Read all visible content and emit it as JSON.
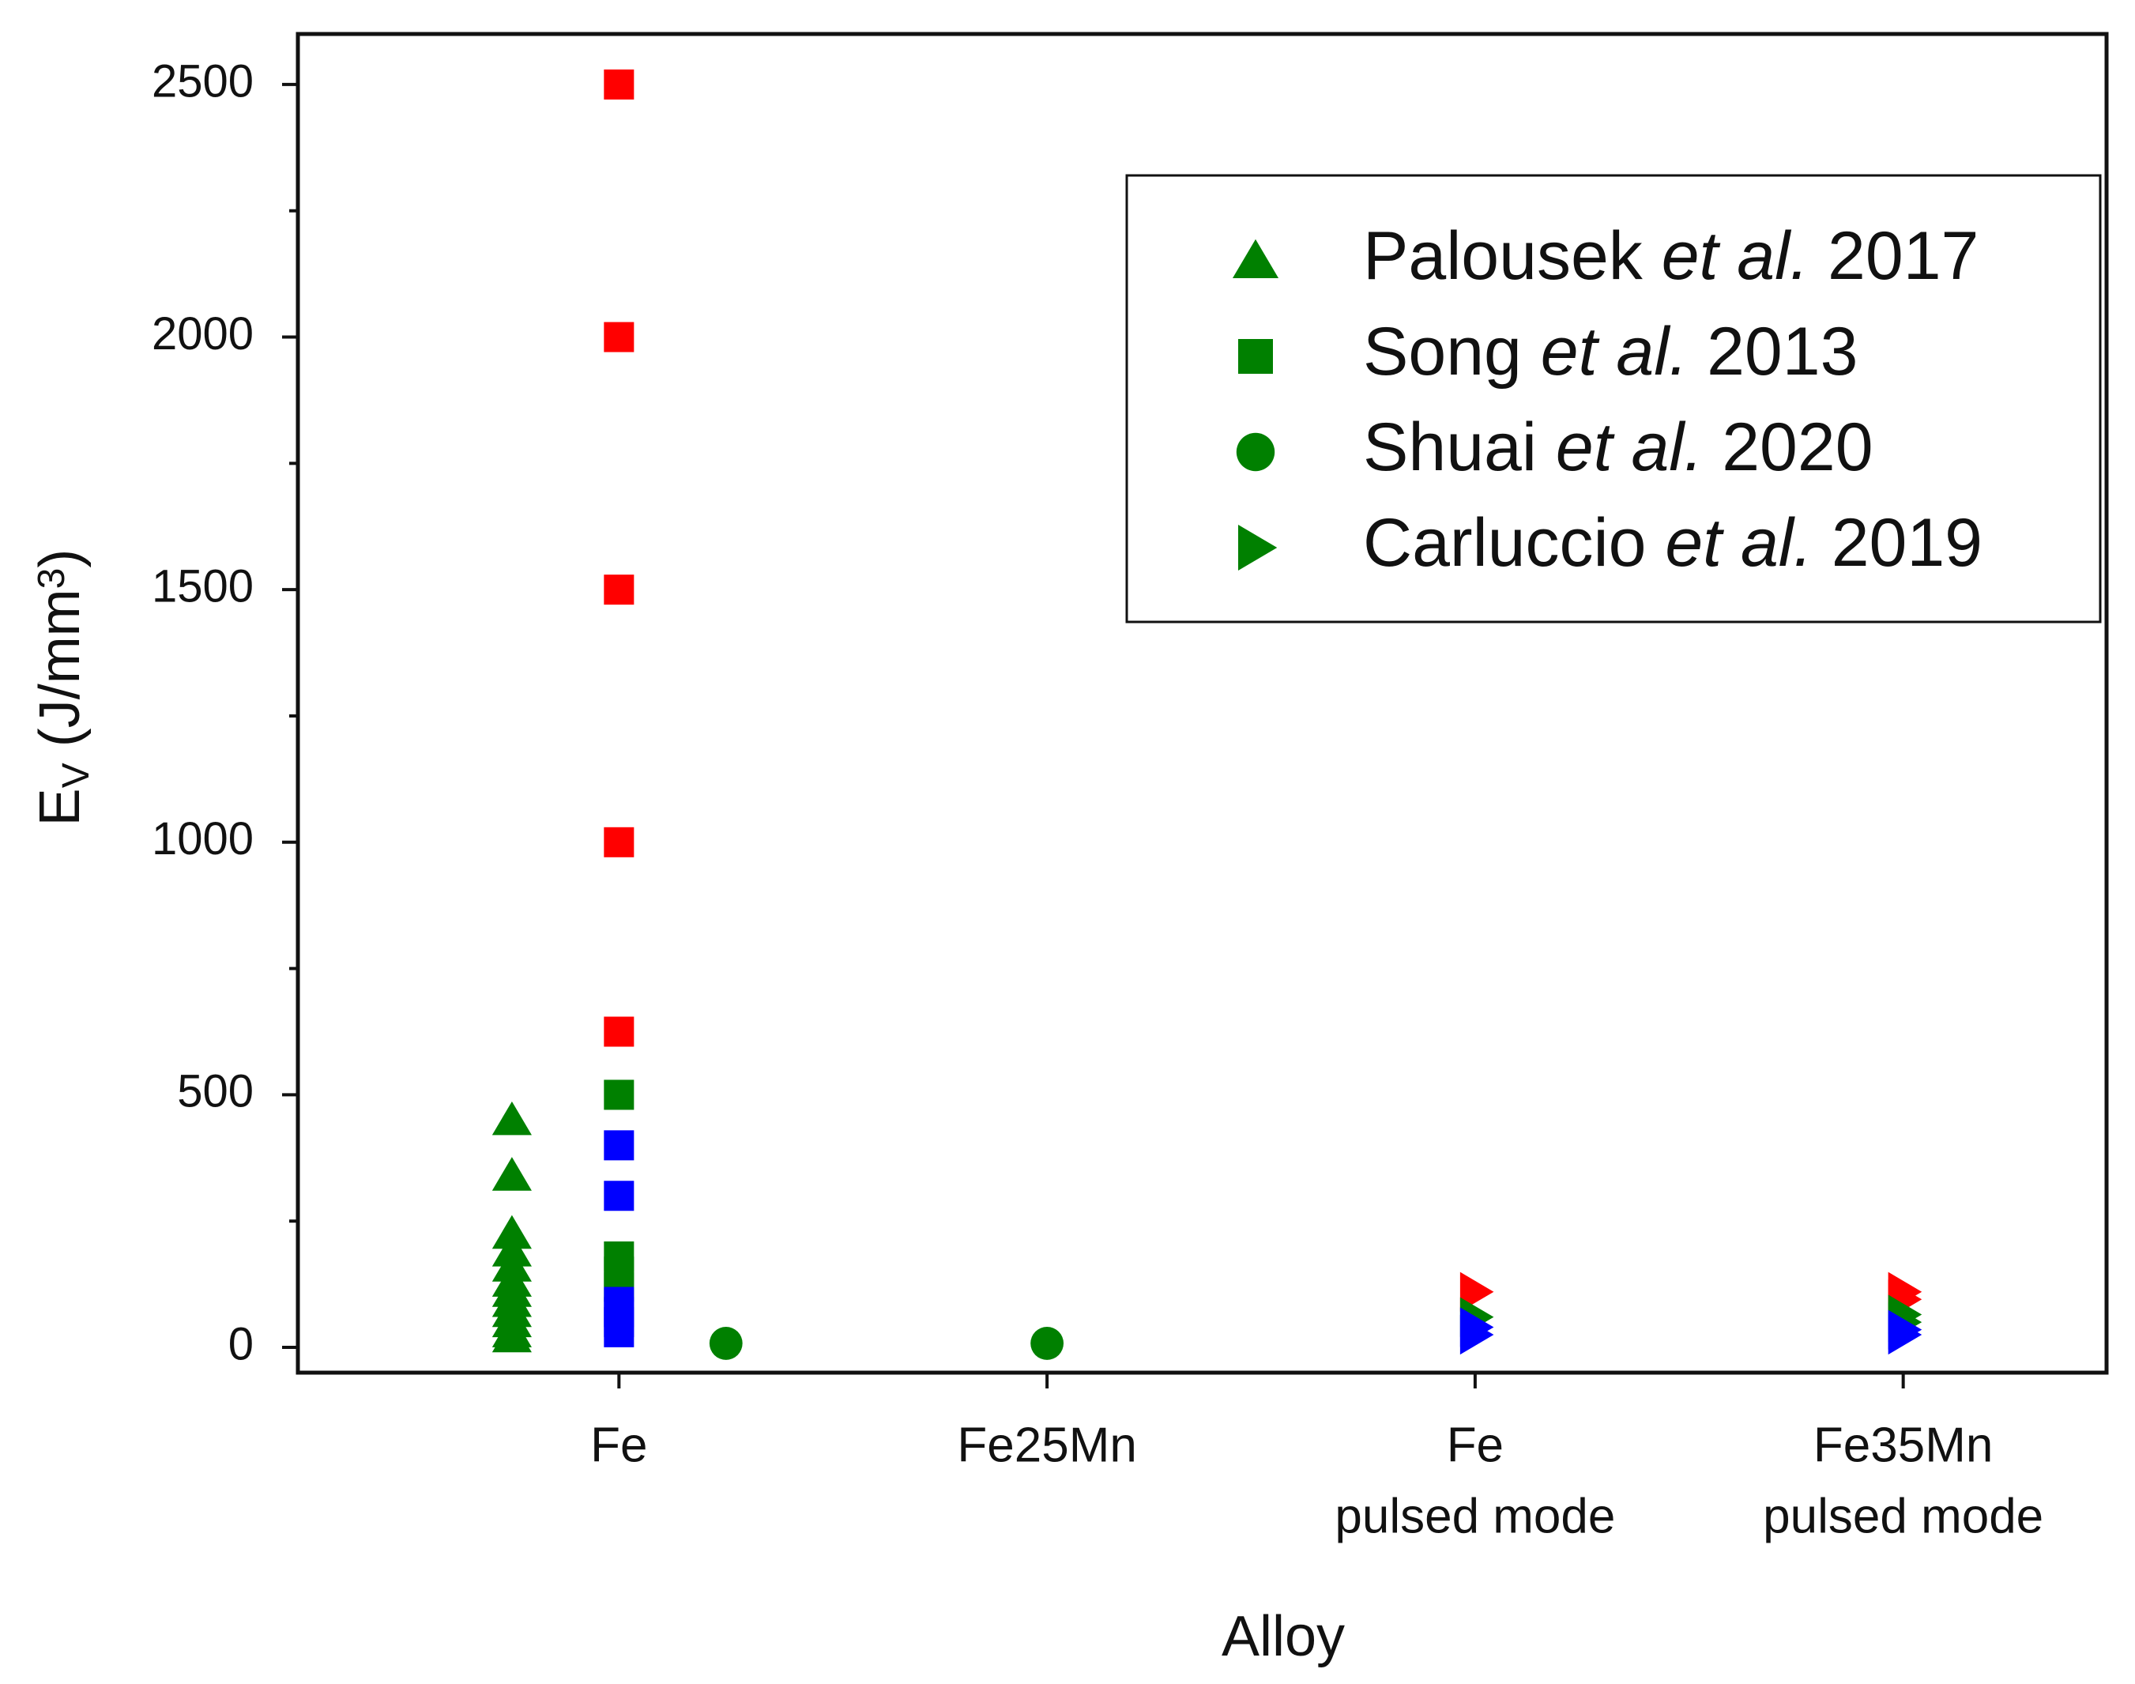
{
  "chart_data": {
    "type": "scatter",
    "xlabel": "Alloy",
    "ylabel": [
      "E",
      "V",
      " (J/mm",
      "3",
      ")"
    ],
    "xlim": [
      0.25,
      4.475
    ],
    "ylim": [
      -50,
      2600
    ],
    "xticks": [
      {
        "value": 1,
        "label": [
          "Fe"
        ]
      },
      {
        "value": 2,
        "label": [
          "Fe25Mn"
        ]
      },
      {
        "value": 3,
        "label": [
          "Fe",
          "pulsed mode"
        ]
      },
      {
        "value": 4,
        "label": [
          "Fe35Mn",
          "pulsed mode"
        ]
      }
    ],
    "yticks": [
      0,
      500,
      1000,
      1500,
      2000,
      2500
    ],
    "yminorticks": [
      250,
      750,
      1250,
      1750,
      2250
    ],
    "legend": "upper right",
    "series": [
      {
        "name": [
          "Palousek ",
          "et al.",
          " 2017"
        ],
        "marker": "triangle-up",
        "color": "#008000",
        "x": [
          0.75,
          0.75,
          0.75,
          0.75,
          0.75,
          0.75,
          0.75,
          0.75,
          0.75,
          0.75,
          0.75,
          0.75
        ],
        "values": [
          450,
          340,
          225,
          190,
          160,
          130,
          110,
          90,
          70,
          50,
          30,
          20
        ],
        "colors": [
          "#008000",
          "#008000",
          "#008000",
          "#008000",
          "#008000",
          "#008000",
          "#008000",
          "#008000",
          "#008000",
          "#008000",
          "#008000",
          "#008000"
        ]
      },
      {
        "name": [
          "Song ",
          "et al.",
          " 2013"
        ],
        "marker": "square",
        "color": "#008000",
        "x": [
          1,
          1,
          1,
          1,
          1,
          1,
          1,
          1,
          1,
          1,
          1,
          1,
          1,
          1,
          1
        ],
        "values": [
          2500,
          2000,
          1500,
          1000,
          625,
          500,
          180,
          150,
          120,
          400,
          300,
          90,
          70,
          50,
          30
        ],
        "colors": [
          "#ff0000",
          "#ff0000",
          "#ff0000",
          "#ff0000",
          "#ff0000",
          "#008000",
          "#008000",
          "#008000",
          "#008000",
          "#0000ff",
          "#0000ff",
          "#0000ff",
          "#0000ff",
          "#0000ff",
          "#0000ff"
        ]
      },
      {
        "name": [
          "Shuai ",
          "et al.",
          " 2020"
        ],
        "marker": "circle",
        "color": "#008000",
        "x": [
          1.25,
          2
        ],
        "values": [
          8,
          8
        ],
        "colors": [
          "#008000",
          "#008000"
        ]
      },
      {
        "name": [
          "Carluccio ",
          "et al.",
          " 2019"
        ],
        "marker": "triangle-right",
        "color": "#008000",
        "x": [
          3,
          3,
          3,
          3,
          4,
          4,
          4,
          4,
          4,
          4
        ],
        "values": [
          110,
          60,
          40,
          25,
          110,
          95,
          65,
          50,
          35,
          25
        ],
        "colors": [
          "#ff0000",
          "#008000",
          "#0000ff",
          "#0000ff",
          "#ff0000",
          "#ff0000",
          "#008000",
          "#008000",
          "#0000ff",
          "#0000ff"
        ]
      }
    ]
  }
}
